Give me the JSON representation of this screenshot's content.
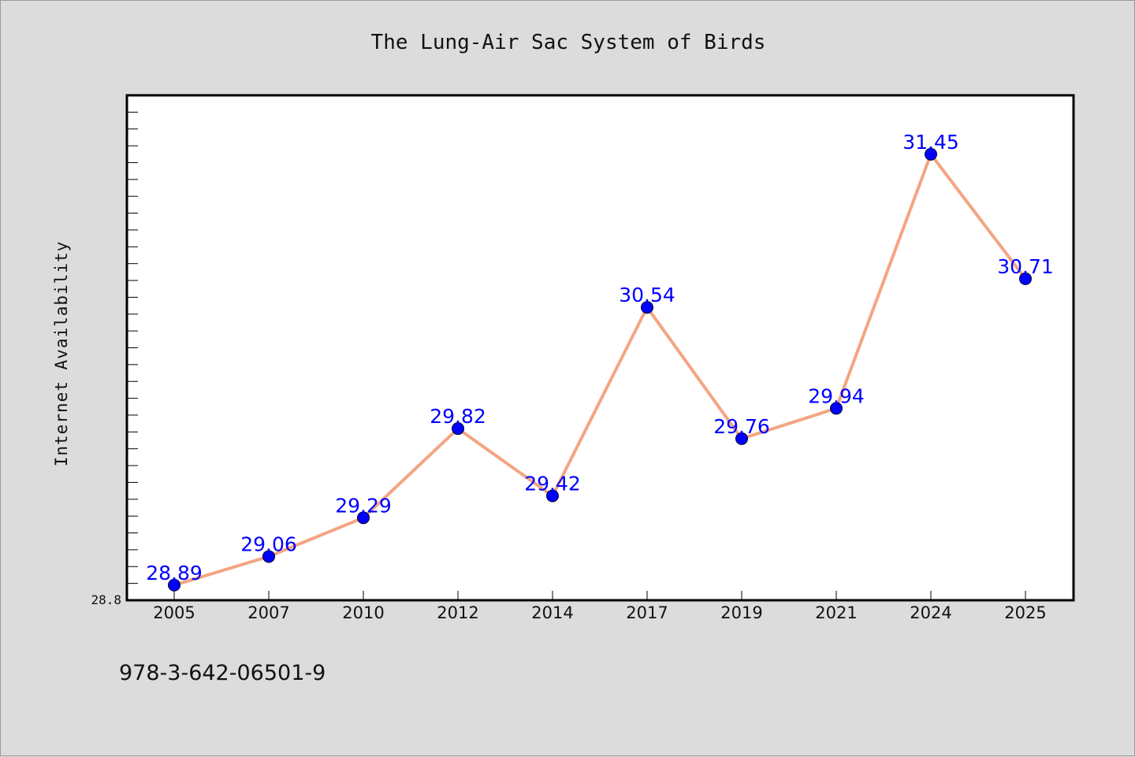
{
  "chart_data": {
    "type": "line",
    "title": "The Lung-Air Sac System of Birds",
    "xlabel": "",
    "ylabel": "Internet Availability",
    "categories": [
      "2005",
      "2007",
      "2010",
      "2012",
      "2014",
      "2017",
      "2019",
      "2021",
      "2024",
      "2025"
    ],
    "values": [
      28.89,
      29.06,
      29.29,
      29.82,
      29.42,
      30.54,
      29.76,
      29.94,
      31.45,
      30.71
    ],
    "data_labels": [
      "28.89",
      "29.06",
      "29.29",
      "29.82",
      "29.42",
      "30.54",
      "29.76",
      "29.94",
      "31.45",
      "30.71"
    ],
    "y_tick_labels": [
      "28.8"
    ],
    "ylim": [
      28.8,
      31.8
    ],
    "grid": false,
    "legend": "none",
    "line_color": "#f4a582",
    "marker_color": "#0000ff",
    "label_color": "#0000ff"
  },
  "footer": {
    "isbn": "978-3-642-06501-9"
  },
  "colors": {
    "background": "#dcdcdc",
    "plot_background": "#ffffff",
    "axis": "#000000"
  }
}
